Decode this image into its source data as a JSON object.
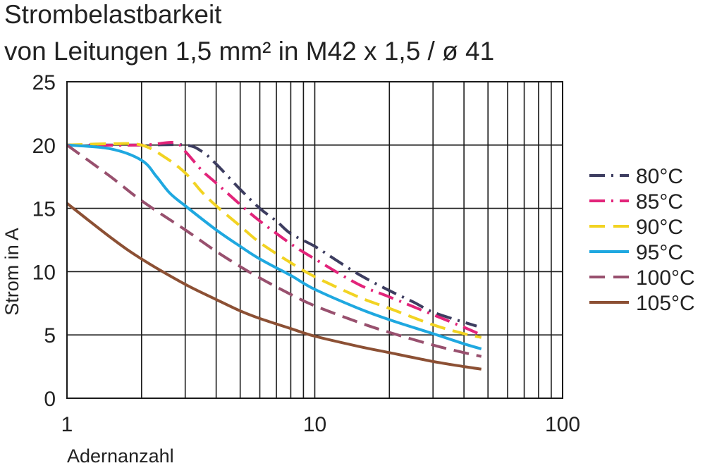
{
  "title_line1": "Strombelastbarkeit",
  "title_line2": "von Leitungen 1,5 mm² in M42 x 1,5 / ø 41",
  "chart_data": {
    "type": "line",
    "x_scale": "log",
    "xlim": [
      1,
      100
    ],
    "ylim": [
      0,
      25
    ],
    "xlabel": "Adernanzahl",
    "ylabel": "Strom in A",
    "x_ticks": [
      1,
      10,
      100
    ],
    "y_ticks": [
      0,
      5,
      10,
      15,
      20,
      25
    ],
    "grid": true,
    "legend_position": "right",
    "series": [
      {
        "name": "80°C",
        "color": "#3d3d60",
        "dash": "dash-dot",
        "points": [
          [
            1,
            20
          ],
          [
            2,
            20
          ],
          [
            3,
            20
          ],
          [
            3.5,
            19.5
          ],
          [
            4,
            18.5
          ],
          [
            5,
            16.5
          ],
          [
            6,
            15
          ],
          [
            7,
            14
          ],
          [
            8,
            13
          ],
          [
            10,
            12
          ],
          [
            12,
            11
          ],
          [
            15,
            9.8
          ],
          [
            20,
            8.5
          ],
          [
            25,
            7.6
          ],
          [
            30,
            6.8
          ],
          [
            40,
            6
          ],
          [
            45,
            5.7
          ]
        ]
      },
      {
        "name": "85°C",
        "color": "#e2247a",
        "dash": "dash-dot",
        "points": [
          [
            1,
            20
          ],
          [
            2,
            20
          ],
          [
            2.7,
            20.2
          ],
          [
            3,
            19.5
          ],
          [
            3.5,
            18
          ],
          [
            4,
            17
          ],
          [
            5,
            15.3
          ],
          [
            6,
            14
          ],
          [
            8,
            12.2
          ],
          [
            10,
            11
          ],
          [
            15,
            9
          ],
          [
            20,
            8
          ],
          [
            30,
            6.6
          ],
          [
            40,
            5.6
          ],
          [
            47,
            5
          ]
        ]
      },
      {
        "name": "90°C",
        "color": "#f2d322",
        "dash": "dash",
        "points": [
          [
            1,
            20
          ],
          [
            1.5,
            20.1
          ],
          [
            2,
            20
          ],
          [
            2.5,
            19
          ],
          [
            3,
            17.8
          ],
          [
            3.5,
            16.3
          ],
          [
            4,
            15.2
          ],
          [
            5,
            13.6
          ],
          [
            6,
            12.3
          ],
          [
            8,
            10.7
          ],
          [
            10,
            9.6
          ],
          [
            15,
            8
          ],
          [
            20,
            7.1
          ],
          [
            30,
            5.8
          ],
          [
            40,
            5.1
          ],
          [
            47,
            4.8
          ]
        ]
      },
      {
        "name": "95°C",
        "color": "#1fa8e0",
        "dash": "solid",
        "points": [
          [
            1,
            20
          ],
          [
            1.5,
            19.7
          ],
          [
            2,
            18.8
          ],
          [
            2.3,
            17.5
          ],
          [
            2.6,
            16.2
          ],
          [
            3,
            15.2
          ],
          [
            4,
            13.3
          ],
          [
            5,
            12
          ],
          [
            6,
            11
          ],
          [
            8,
            9.7
          ],
          [
            10,
            8.6
          ],
          [
            15,
            7.1
          ],
          [
            20,
            6.2
          ],
          [
            30,
            5.1
          ],
          [
            40,
            4.3
          ],
          [
            47,
            3.9
          ]
        ]
      },
      {
        "name": "100°C",
        "color": "#98506e",
        "dash": "dash",
        "points": [
          [
            1,
            20
          ],
          [
            1.5,
            17.5
          ],
          [
            2,
            15.6
          ],
          [
            3,
            13.3
          ],
          [
            4,
            11.6
          ],
          [
            5,
            10.4
          ],
          [
            6,
            9.5
          ],
          [
            8,
            8.2
          ],
          [
            10,
            7.3
          ],
          [
            15,
            6
          ],
          [
            20,
            5.2
          ],
          [
            30,
            4.2
          ],
          [
            40,
            3.6
          ],
          [
            47,
            3.3
          ]
        ]
      },
      {
        "name": "105°C",
        "color": "#8c5034",
        "dash": "solid",
        "points": [
          [
            1,
            15.4
          ],
          [
            1.5,
            12.7
          ],
          [
            2,
            11
          ],
          [
            3,
            9
          ],
          [
            4,
            7.8
          ],
          [
            5,
            6.9
          ],
          [
            6,
            6.3
          ],
          [
            8,
            5.5
          ],
          [
            10,
            4.9
          ],
          [
            15,
            4.1
          ],
          [
            20,
            3.6
          ],
          [
            30,
            2.9
          ],
          [
            40,
            2.5
          ],
          [
            47,
            2.3
          ]
        ]
      }
    ]
  }
}
